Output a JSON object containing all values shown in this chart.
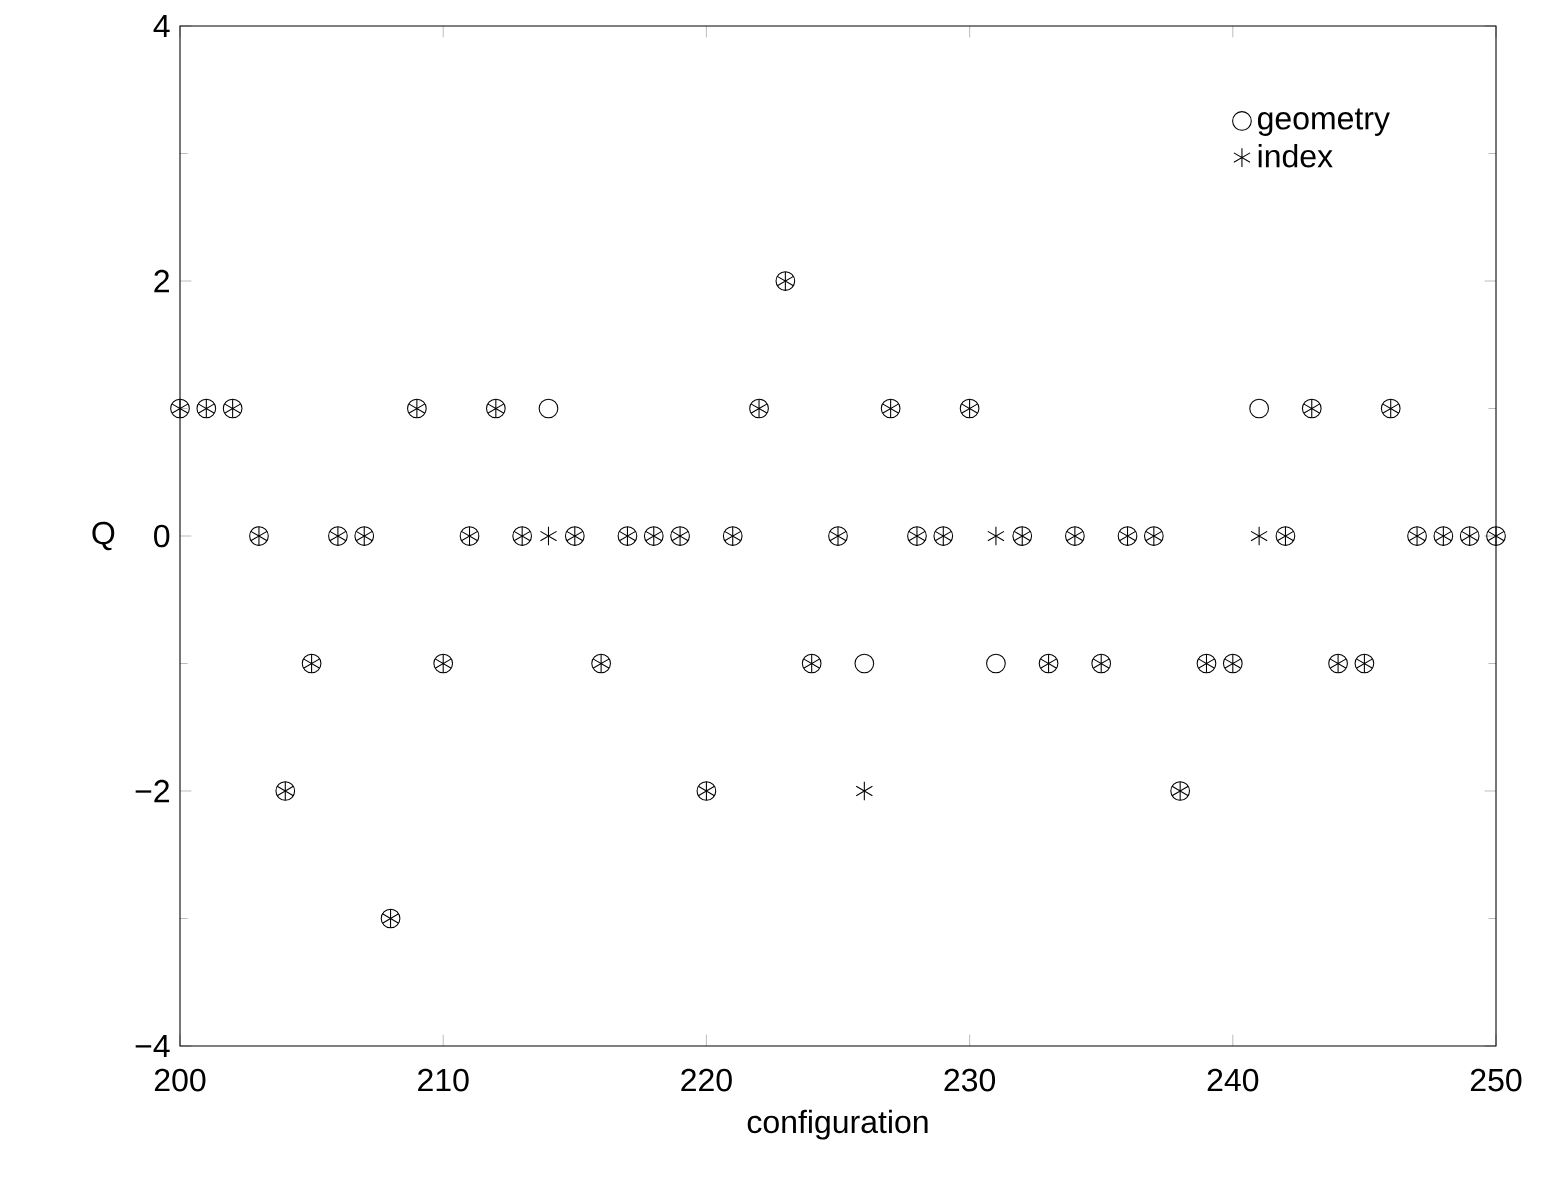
{
  "chart_data": {
    "type": "scatter",
    "xlabel": "configuration",
    "ylabel": "Q",
    "xlim": [
      200,
      250
    ],
    "ylim": [
      -4,
      4
    ],
    "xticks": [
      200,
      210,
      220,
      230,
      240,
      250
    ],
    "yticks": [
      {
        "value": -4,
        "label": "−4"
      },
      {
        "value": -2,
        "label": "−2"
      },
      0,
      2,
      4
    ],
    "grid": false,
    "legend": "top right",
    "x": [
      200,
      201,
      202,
      203,
      204,
      205,
      206,
      207,
      208,
      209,
      210,
      211,
      212,
      213,
      214,
      215,
      216,
      217,
      218,
      219,
      220,
      221,
      222,
      223,
      224,
      225,
      226,
      227,
      228,
      229,
      230,
      231,
      232,
      233,
      234,
      235,
      236,
      237,
      238,
      239,
      240,
      241,
      242,
      243,
      244,
      245,
      246,
      247,
      248,
      249,
      250
    ],
    "series": [
      {
        "name": "geometry",
        "color": "#000000",
        "marker": "circle",
        "values": [
          1,
          1,
          1,
          0,
          -2,
          -1,
          0,
          0,
          -3,
          1,
          -1,
          0,
          1,
          0,
          1,
          0,
          -1,
          0,
          0,
          0,
          -2,
          0,
          1,
          2,
          -1,
          0,
          -1,
          1,
          0,
          0,
          1,
          -1,
          0,
          -1,
          0,
          -1,
          0,
          0,
          -2,
          -1,
          -1,
          1,
          0,
          1,
          -1,
          -1,
          1,
          0,
          0,
          0,
          0
        ]
      },
      {
        "name": "index",
        "color": "#000000",
        "marker": "cross",
        "values": [
          1,
          1,
          1,
          0,
          -2,
          -1,
          0,
          0,
          -3,
          1,
          -1,
          0,
          1,
          0,
          0,
          0,
          -1,
          0,
          0,
          0,
          -2,
          0,
          1,
          2,
          -1,
          0,
          -2,
          1,
          0,
          0,
          1,
          0,
          0,
          -1,
          0,
          -1,
          0,
          0,
          -2,
          -1,
          -1,
          0,
          0,
          1,
          -1,
          -1,
          1,
          0,
          0,
          0,
          0
        ]
      }
    ]
  }
}
